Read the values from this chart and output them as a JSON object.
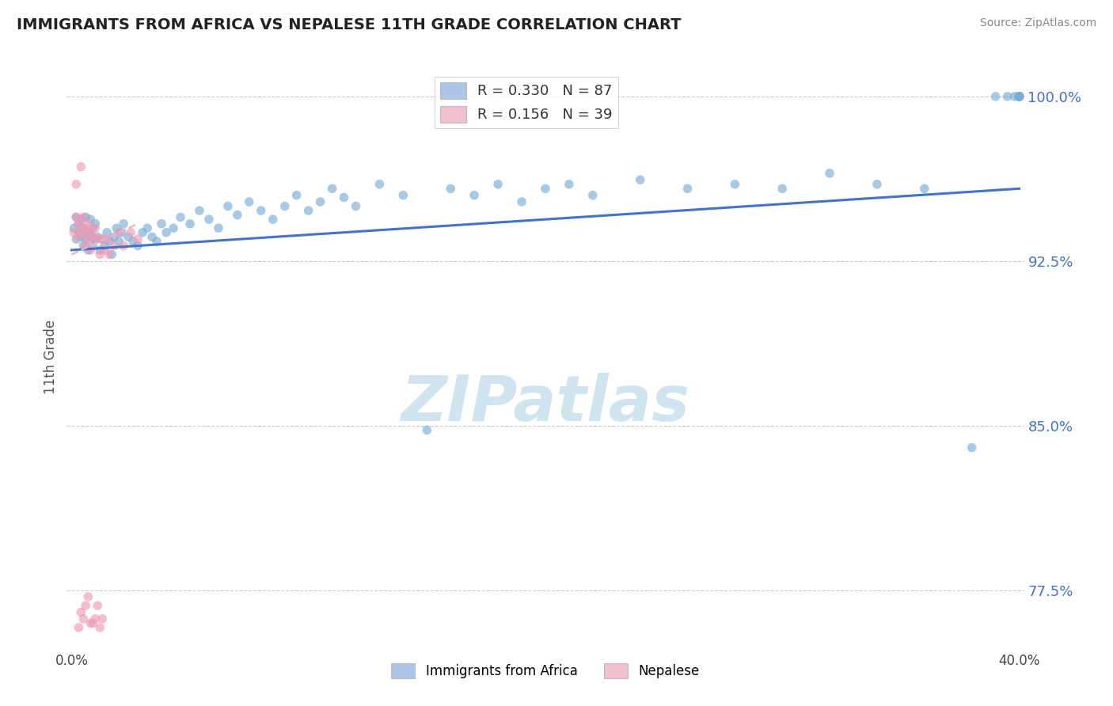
{
  "title": "IMMIGRANTS FROM AFRICA VS NEPALESE 11TH GRADE CORRELATION CHART",
  "source_text": "Source: ZipAtlas.com",
  "ylabel": "11th Grade",
  "xlim": [
    -0.002,
    0.402
  ],
  "ylim": [
    0.748,
    1.015
  ],
  "xtick_vals": [
    0.0,
    0.1,
    0.2,
    0.3,
    0.4
  ],
  "xtick_labels": [
    "0.0%",
    "",
    "",
    "",
    "40.0%"
  ],
  "ytick_labels": [
    "77.5%",
    "85.0%",
    "92.5%",
    "100.0%"
  ],
  "ytick_vals": [
    0.775,
    0.85,
    0.925,
    1.0
  ],
  "legend_r1": "R = 0.330   N = 87",
  "legend_r2": "R = 0.156   N = 39",
  "legend_color1": "#adc6e8",
  "legend_color2": "#f2bfcd",
  "blue_color": "#7aadd4",
  "pink_color": "#f09ab5",
  "trend_blue_color": "#4472c4",
  "trend_pink_color": "#e8b4c0",
  "watermark": "ZIPatlas",
  "watermark_color": "#d0e4f0",
  "background_color": "#ffffff",
  "grid_color": "#cccccc",
  "title_color": "#222222",
  "axis_label_color": "#555555",
  "right_label_color": "#4472c4",
  "source_color": "#888888",
  "blue_x": [
    0.001,
    0.002,
    0.002,
    0.003,
    0.003,
    0.004,
    0.004,
    0.005,
    0.005,
    0.006,
    0.006,
    0.007,
    0.007,
    0.008,
    0.008,
    0.009,
    0.009,
    0.01,
    0.01,
    0.011,
    0.012,
    0.013,
    0.014,
    0.015,
    0.016,
    0.017,
    0.018,
    0.019,
    0.02,
    0.021,
    0.022,
    0.024,
    0.026,
    0.028,
    0.03,
    0.032,
    0.034,
    0.036,
    0.038,
    0.04,
    0.043,
    0.046,
    0.05,
    0.054,
    0.058,
    0.062,
    0.066,
    0.07,
    0.075,
    0.08,
    0.085,
    0.09,
    0.095,
    0.1,
    0.105,
    0.11,
    0.115,
    0.12,
    0.13,
    0.14,
    0.15,
    0.16,
    0.17,
    0.18,
    0.19,
    0.2,
    0.21,
    0.22,
    0.24,
    0.26,
    0.28,
    0.3,
    0.32,
    0.34,
    0.36,
    0.38,
    0.39,
    0.395,
    0.398,
    0.4,
    0.4,
    0.4,
    0.4,
    0.4,
    0.4,
    0.4,
    0.4
  ],
  "blue_y": [
    0.94,
    0.935,
    0.945,
    0.938,
    0.942,
    0.936,
    0.944,
    0.932,
    0.94,
    0.935,
    0.945,
    0.93,
    0.938,
    0.936,
    0.944,
    0.932,
    0.94,
    0.935,
    0.942,
    0.936,
    0.93,
    0.935,
    0.932,
    0.938,
    0.934,
    0.928,
    0.936,
    0.94,
    0.934,
    0.938,
    0.942,
    0.936,
    0.934,
    0.932,
    0.938,
    0.94,
    0.936,
    0.934,
    0.942,
    0.938,
    0.94,
    0.945,
    0.942,
    0.948,
    0.944,
    0.94,
    0.95,
    0.946,
    0.952,
    0.948,
    0.944,
    0.95,
    0.955,
    0.948,
    0.952,
    0.958,
    0.954,
    0.95,
    0.96,
    0.955,
    0.848,
    0.958,
    0.955,
    0.96,
    0.952,
    0.958,
    0.96,
    0.955,
    0.962,
    0.958,
    0.96,
    0.958,
    0.965,
    0.96,
    0.958,
    0.84,
    1.0,
    1.0,
    1.0,
    1.0,
    1.0,
    1.0,
    1.0,
    1.0,
    1.0,
    1.0,
    1.0
  ],
  "pink_x": [
    0.001,
    0.002,
    0.002,
    0.003,
    0.003,
    0.004,
    0.004,
    0.005,
    0.005,
    0.006,
    0.006,
    0.007,
    0.007,
    0.008,
    0.008,
    0.009,
    0.01,
    0.011,
    0.012,
    0.013,
    0.014,
    0.015,
    0.016,
    0.018,
    0.02,
    0.022,
    0.025,
    0.028,
    0.005,
    0.006,
    0.007,
    0.008,
    0.004,
    0.003,
    0.009,
    0.01,
    0.011,
    0.012,
    0.013
  ],
  "pink_y": [
    0.938,
    0.945,
    0.96,
    0.942,
    0.936,
    0.968,
    0.94,
    0.938,
    0.945,
    0.932,
    0.94,
    0.935,
    0.942,
    0.93,
    0.938,
    0.936,
    0.94,
    0.935,
    0.928,
    0.935,
    0.93,
    0.935,
    0.928,
    0.932,
    0.938,
    0.932,
    0.938,
    0.935,
    0.762,
    0.768,
    0.772,
    0.76,
    0.765,
    0.758,
    0.76,
    0.762,
    0.768,
    0.758,
    0.762
  ]
}
